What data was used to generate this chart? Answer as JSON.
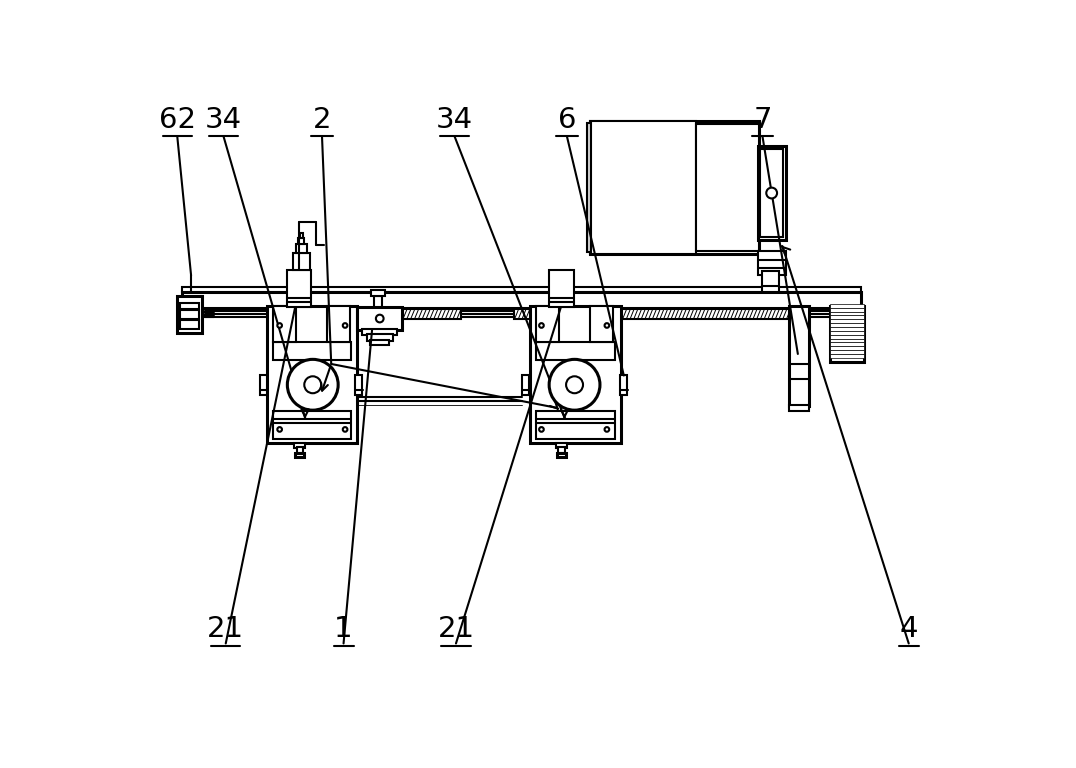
{
  "bg": "#ffffff",
  "lc": "#000000",
  "lw": 1.5,
  "lw2": 2.2,
  "fs": 21
}
